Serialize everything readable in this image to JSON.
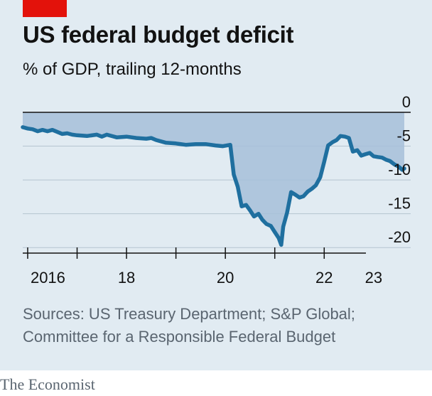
{
  "header": {
    "title": "US federal budget deficit",
    "subtitle": "% of GDP, trailing 12-months"
  },
  "source": {
    "line1": "Sources: US Treasury Department; S&P Global;",
    "line2": "Committee for a Responsible Federal Budget"
  },
  "brand": "The Economist",
  "colors": {
    "line": "#1f6f9f",
    "area": "#a6bfd9",
    "accent": "#e3120b",
    "background": "#e1ebf2"
  },
  "chart_data": {
    "type": "area",
    "title": "US federal budget deficit",
    "subtitle": "% of GDP, trailing 12-months",
    "xlabel": "",
    "ylabel": "",
    "xlim": [
      2015.9,
      2023.75
    ],
    "ylim": [
      -20.5,
      0
    ],
    "y_ticks": [
      0,
      -5,
      -10,
      -15,
      -20
    ],
    "y_tick_labels": [
      "0",
      "-5",
      "-10",
      "-15",
      "-20"
    ],
    "x_ticks": [
      2016,
      2018,
      2020,
      2022,
      2023
    ],
    "x_tick_labels": [
      "2016",
      "18",
      "20",
      "22",
      "23"
    ],
    "grid": true,
    "series": [
      {
        "x": [
          2015.9,
          2016.0,
          2016.1,
          2016.2,
          2016.3,
          2016.4,
          2016.5,
          2016.6,
          2016.7,
          2016.8,
          2016.9,
          2017.0,
          2017.2,
          2017.4,
          2017.5,
          2017.6,
          2017.8,
          2018.0,
          2018.2,
          2018.4,
          2018.5,
          2018.6,
          2018.8,
          2019.0,
          2019.2,
          2019.4,
          2019.6,
          2019.8,
          2019.95,
          2020.1,
          2020.17,
          2020.25,
          2020.33,
          2020.42,
          2020.5,
          2020.58,
          2020.67,
          2020.75,
          2020.83,
          2020.92,
          2021.0,
          2021.08,
          2021.13,
          2021.17,
          2021.25,
          2021.33,
          2021.42,
          2021.5,
          2021.58,
          2021.67,
          2021.75,
          2021.83,
          2021.92,
          2022.0,
          2022.08,
          2022.17,
          2022.25,
          2022.33,
          2022.42,
          2022.5,
          2022.58,
          2022.67,
          2022.75,
          2022.83,
          2022.92,
          2023.0,
          2023.08,
          2023.17,
          2023.25,
          2023.33,
          2023.42,
          2023.5,
          2023.58,
          2023.62
        ],
        "values": [
          -2.2,
          -2.4,
          -2.5,
          -2.8,
          -2.6,
          -2.8,
          -2.6,
          -2.9,
          -3.2,
          -3.1,
          -3.3,
          -3.4,
          -3.5,
          -3.3,
          -3.6,
          -3.3,
          -3.7,
          -3.6,
          -3.8,
          -3.9,
          -3.8,
          -4.1,
          -4.5,
          -4.6,
          -4.8,
          -4.7,
          -4.7,
          -4.9,
          -5.0,
          -4.8,
          -9.2,
          -11.0,
          -13.9,
          -13.7,
          -14.5,
          -15.4,
          -15.0,
          -15.9,
          -16.5,
          -16.8,
          -17.7,
          -18.6,
          -19.6,
          -16.9,
          -14.8,
          -11.8,
          -12.2,
          -12.6,
          -12.4,
          -11.7,
          -11.3,
          -10.8,
          -9.6,
          -7.3,
          -4.9,
          -4.4,
          -4.1,
          -3.5,
          -3.6,
          -3.8,
          -5.8,
          -5.6,
          -6.4,
          -6.2,
          -6.0,
          -6.5,
          -6.6,
          -6.7,
          -7.0,
          -7.2,
          -7.7,
          -8.0,
          -8.5,
          -8.3
        ]
      }
    ]
  }
}
